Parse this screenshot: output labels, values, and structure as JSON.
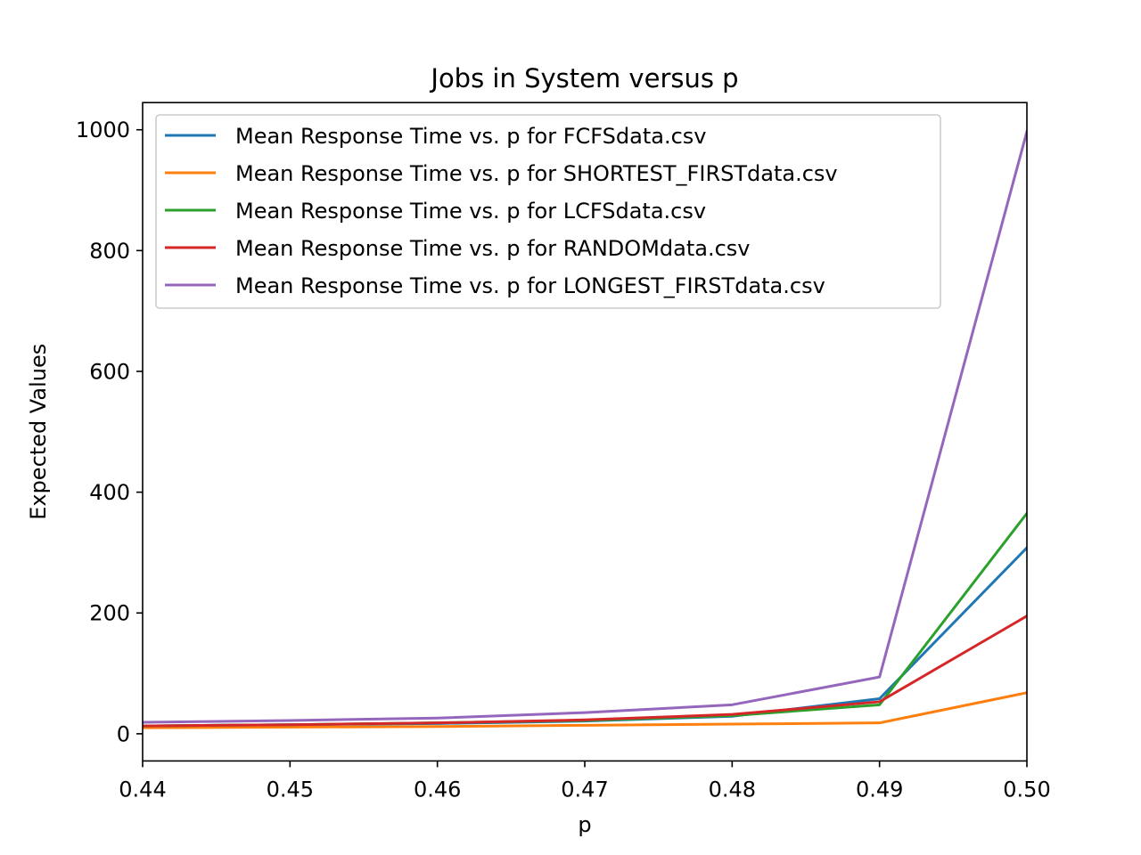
{
  "chart_data": {
    "type": "line",
    "title": "Jobs in System versus p",
    "xlabel": "p",
    "ylabel": "Expected Values",
    "xlim": [
      0.44,
      0.5
    ],
    "ylim": [
      -45,
      1045
    ],
    "x": [
      0.44,
      0.45,
      0.46,
      0.47,
      0.48,
      0.49,
      0.5
    ],
    "xticks": [
      0.44,
      0.45,
      0.46,
      0.47,
      0.48,
      0.49,
      0.5
    ],
    "xtick_labels": [
      "0.44",
      "0.45",
      "0.46",
      "0.47",
      "0.48",
      "0.49",
      "0.50"
    ],
    "yticks": [
      0,
      200,
      400,
      600,
      800,
      1000
    ],
    "ytick_labels": [
      "0",
      "200",
      "400",
      "600",
      "800",
      "1000"
    ],
    "grid": false,
    "legend_position": "upper-left",
    "series": [
      {
        "name": "Mean Response Time vs. p for FCFSdata.csv",
        "color": "#1f77b4",
        "values": [
          13,
          15,
          17,
          21,
          29,
          58,
          308
        ]
      },
      {
        "name": "Mean Response Time vs. p for SHORTEST_FIRSTdata.csv",
        "color": "#ff7f0e",
        "values": [
          10,
          11,
          12,
          14,
          16,
          18,
          68
        ]
      },
      {
        "name": "Mean Response Time vs. p for LCFSdata.csv",
        "color": "#2ca02c",
        "values": [
          13,
          15,
          18,
          22,
          30,
          48,
          365
        ]
      },
      {
        "name": "Mean Response Time vs. p for RANDOMdata.csv",
        "color": "#d62728",
        "values": [
          13,
          15,
          18,
          23,
          32,
          53,
          195
        ]
      },
      {
        "name": "Mean Response Time vs. p for LONGEST_FIRSTdata.csv",
        "color": "#9467bd",
        "values": [
          19,
          22,
          26,
          35,
          48,
          94,
          997
        ]
      }
    ]
  }
}
